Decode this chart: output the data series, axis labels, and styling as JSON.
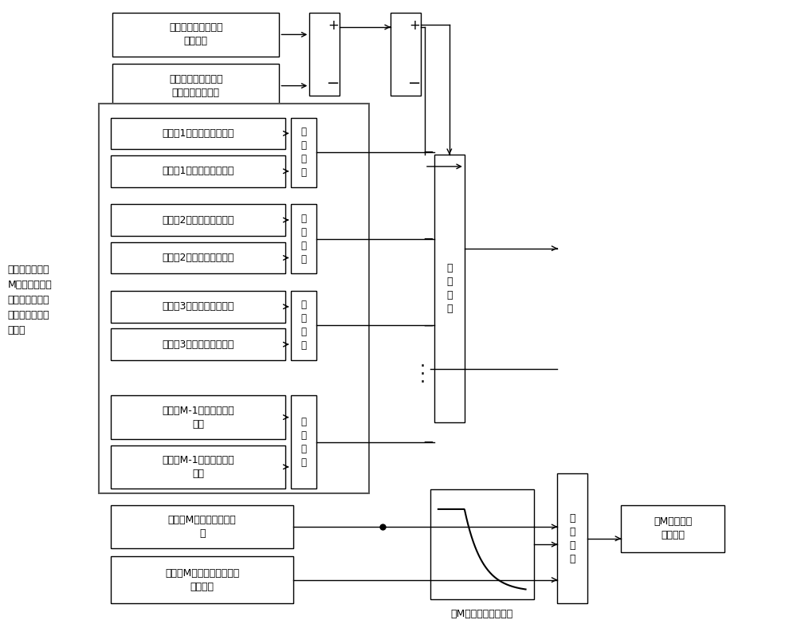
{
  "bg_color": "#ffffff",
  "left_label": "计算得到位于第\nM个电机的放电\n优先级之前的各\n个电机的实际输\n出功率",
  "box1_text": "获取动力电池的剩余\n放电功率",
  "box2_text": "获取低压负载用电部\n件的实际耗电功率",
  "motor1_speed": "获取第1个电机的当前转速",
  "motor1_torque": "获取第1个电机的当前扭矩",
  "motor2_speed": "获取第2个电机的当前转速",
  "motor2_torque": "获取第2个电机的当前扭矩",
  "motor3_speed": "获取第3个电机的当前转速",
  "motor3_torque": "获取第3个电机的当前扭矩",
  "motorM1_speed": "获取第M-1个电机的当前\n转速",
  "motorM1_torque": "获取第M-1个电机的当前\n扭矩",
  "motorM_speed": "获取第M个电机的当前转\n速",
  "motorM_torque": "获取第M个电机的最大允许\n放电扭矩",
  "power_calc": "功\n率\n换\n算",
  "torque_calc": "扭\n矩\n换\n算",
  "min_val": "取\n最\n小\n值",
  "output_text": "第M个电机的\n放电能力",
  "curve_label": "第M个电机外特性曲线"
}
